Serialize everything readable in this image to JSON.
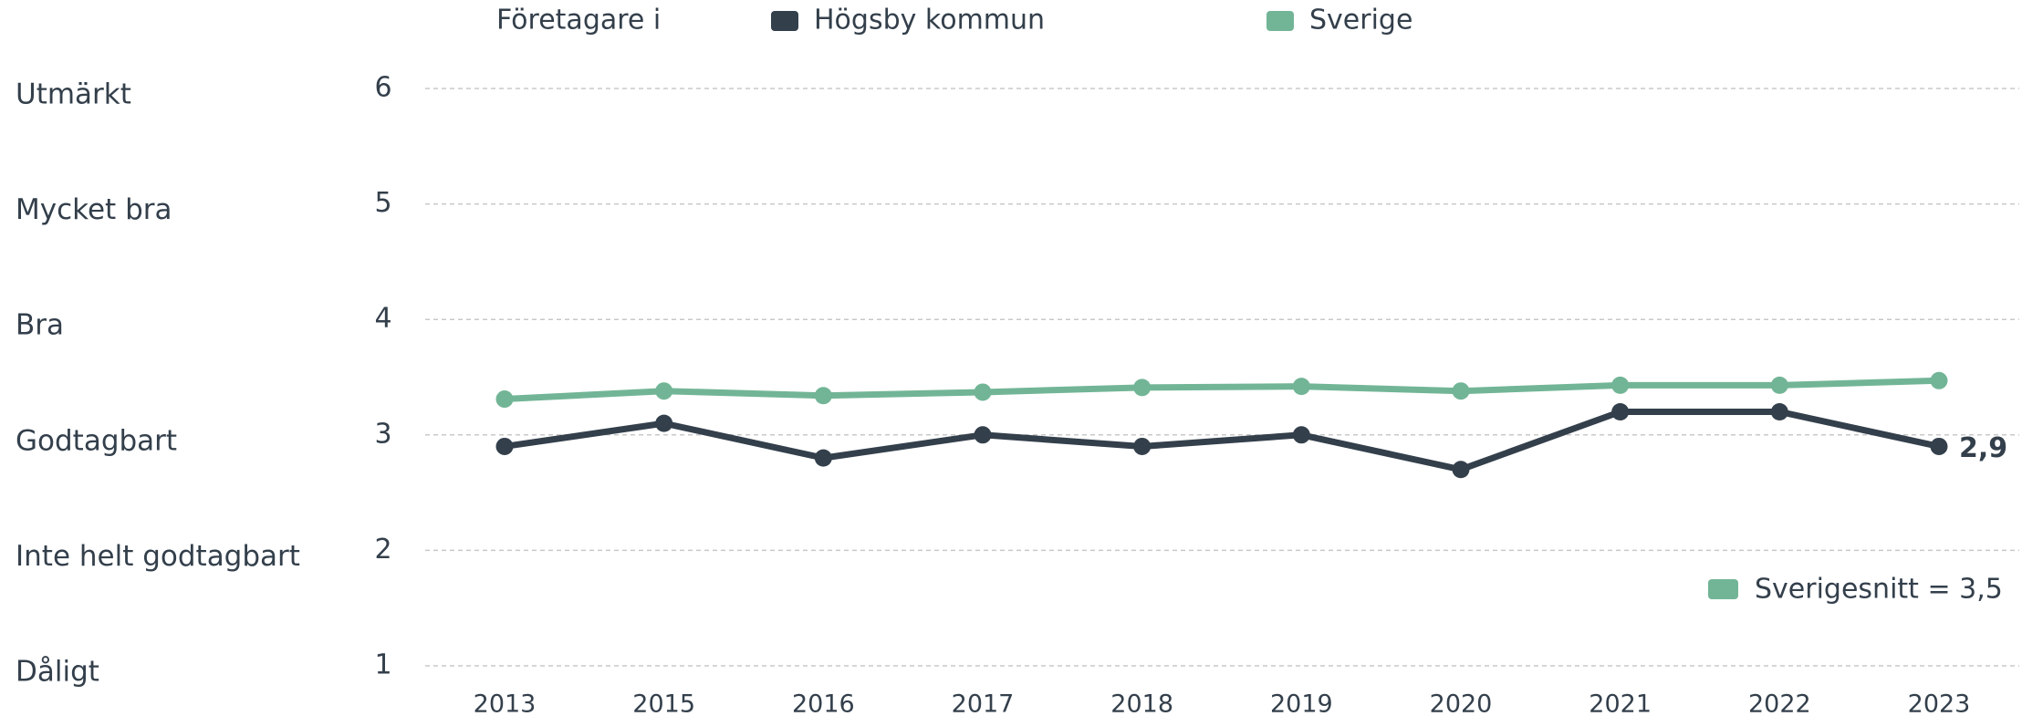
{
  "chart_data": {
    "type": "line",
    "legend_title": "Företagare i",
    "categories": [
      "2013",
      "2015",
      "2016",
      "2017",
      "2018",
      "2019",
      "2020",
      "2021",
      "2022",
      "2023"
    ],
    "series": [
      {
        "name": "Högsby kommun",
        "color": "#333f4b",
        "values": [
          2.9,
          3.1,
          2.8,
          3.0,
          2.9,
          3.0,
          2.7,
          3.2,
          3.2,
          2.9
        ],
        "value_labels": [
          null,
          null,
          null,
          null,
          null,
          null,
          null,
          null,
          null,
          "2,9"
        ]
      },
      {
        "name": "Sverige",
        "color": "#72b596",
        "values": [
          3.31,
          3.38,
          3.34,
          3.37,
          3.41,
          3.42,
          3.38,
          3.43,
          3.43,
          3.47
        ]
      }
    ],
    "ylim": [
      1,
      6
    ],
    "yticks": [
      1,
      2,
      3,
      4,
      5,
      6
    ],
    "y_category_labels": [
      "Dåligt",
      "Inte helt godtagbart",
      "Godtagbart",
      "Bra",
      "Mycket bra",
      "Utmärkt"
    ],
    "annotation": {
      "text": "Sverigesnitt = 3,5",
      "color": "#72b596"
    },
    "grid": true
  }
}
